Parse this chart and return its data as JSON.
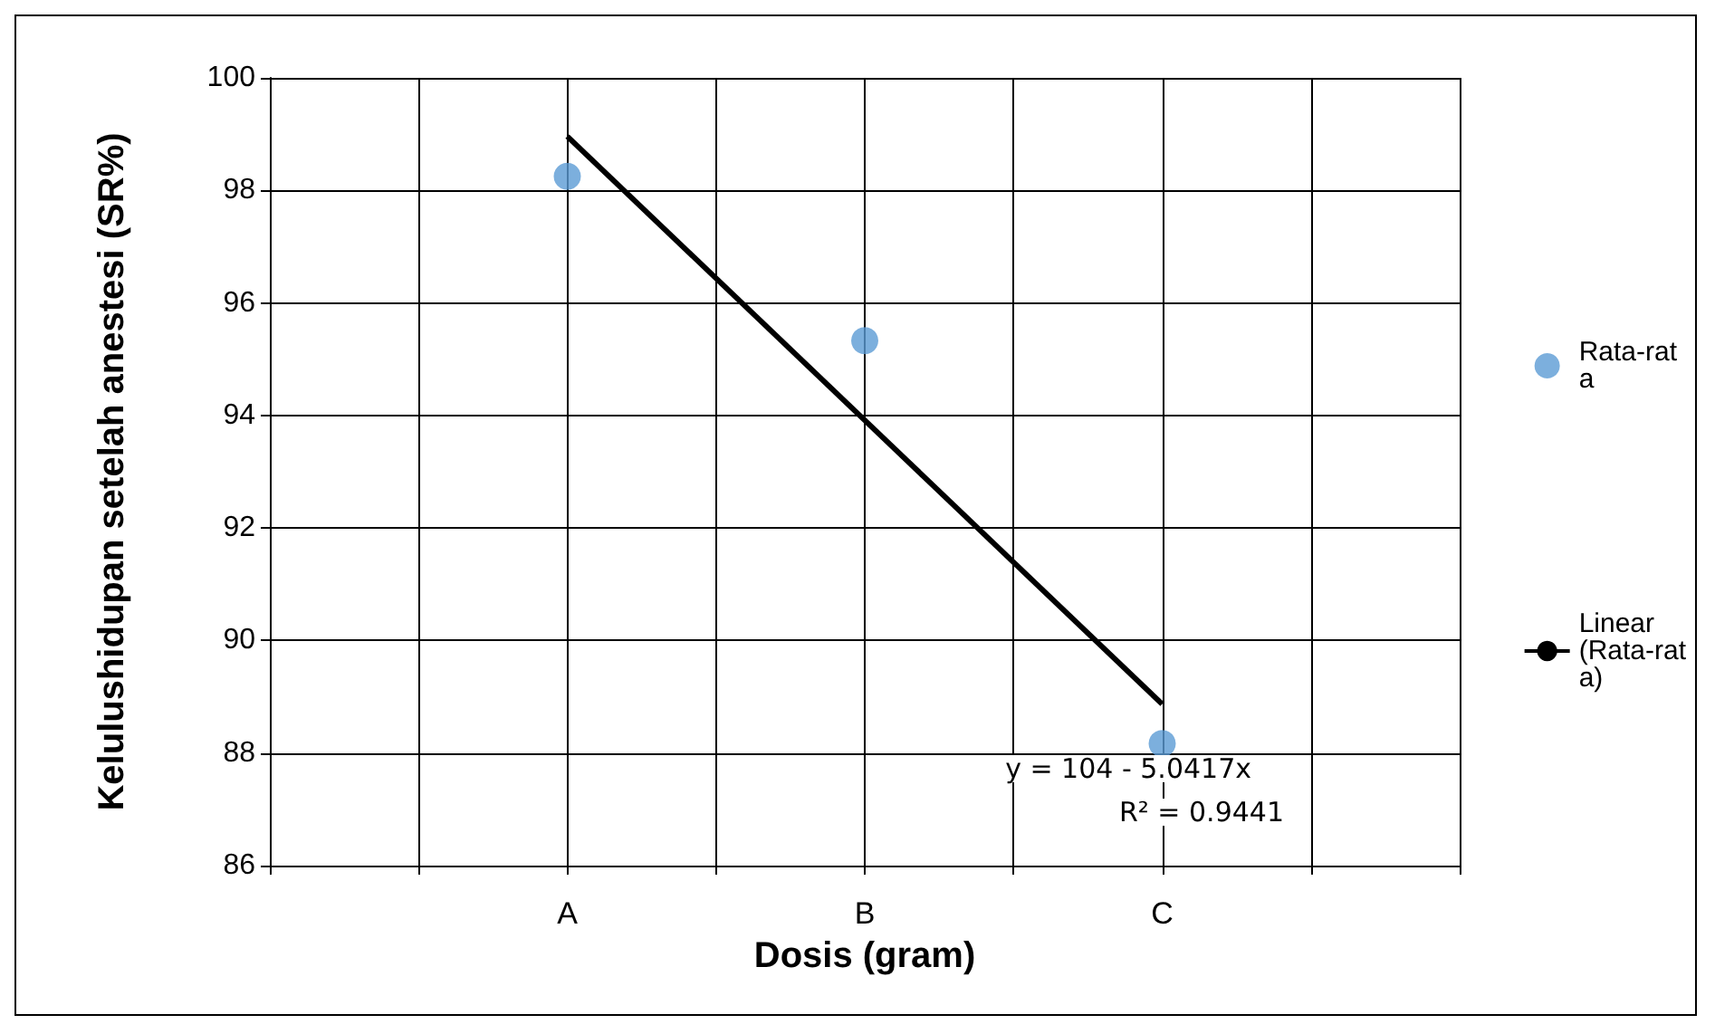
{
  "chart_data": {
    "type": "scatter",
    "xlabel": "Dosis (gram)",
    "ylabel": "Kelulushidupan setelah anestesi (SR%)",
    "categories": [
      null,
      null,
      "A",
      null,
      "B",
      null,
      "C",
      null,
      null
    ],
    "series": [
      {
        "name": "Rata-rata",
        "color": "#5b9bd5",
        "values": [
          null,
          null,
          98.25,
          null,
          95.33,
          null,
          88.17,
          null,
          null
        ],
        "marker": "circle"
      },
      {
        "name": "Linear (Rata-rata)",
        "type": "line",
        "color": "#000000",
        "values": [
          null,
          null,
          98.96,
          null,
          null,
          null,
          88.87,
          null,
          null
        ],
        "marker": "none",
        "line_style": "solid"
      }
    ],
    "ylim": [
      86,
      100
    ],
    "yticks": [
      86,
      88,
      90,
      92,
      94,
      96,
      98,
      100
    ],
    "grid": true,
    "legend": "right",
    "annotations": [
      "y = 104 - 5.0417x",
      "R² = 0.9441"
    ]
  }
}
